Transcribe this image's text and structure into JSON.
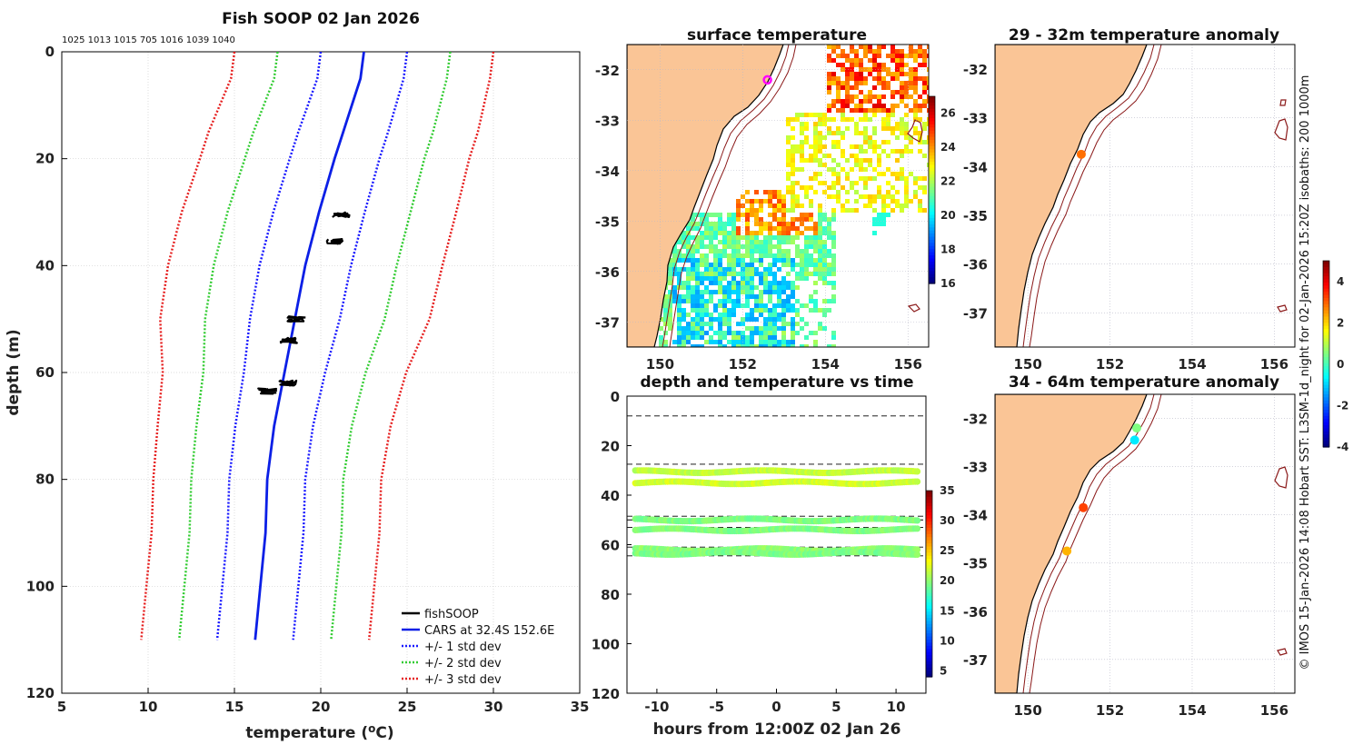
{
  "figure_title": "Fish SOOP 02 Jan 2026",
  "side_caption": "© IMOS 15-Jan-2026 14:08 Hobart SST: L3SM-1d_night for 02-Jan-2026 15:20Z isobaths: 200  1000m",
  "colors": {
    "cars": "#0b1fe6",
    "std1": "#1a1aff",
    "std2": "#33cc33",
    "std3": "#e62020",
    "land": "#fac596",
    "isobath": "#8b1a1a",
    "fish": "#000000"
  },
  "chart_data": [
    {
      "id": "profile",
      "type": "line",
      "title": "Fish SOOP 02 Jan 2026",
      "annotation": "1025 1013 1015 705 1016 1039 1040",
      "xlabel": "temperature (°C)",
      "ylabel": "depth (m)",
      "xlim": [
        5,
        35
      ],
      "ylim": [
        120,
        0
      ],
      "xticks": [
        5,
        10,
        15,
        20,
        25,
        30,
        35
      ],
      "yticks": [
        0,
        20,
        40,
        60,
        80,
        100,
        120
      ],
      "cars_label": "CARS at 32.4S 152.6E",
      "cars": {
        "depth": [
          0,
          5,
          10,
          15,
          20,
          30,
          40,
          50,
          60,
          70,
          80,
          90,
          100,
          110
        ],
        "mean": [
          22.5,
          22.3,
          21.8,
          21.3,
          20.8,
          19.9,
          19.1,
          18.5,
          17.9,
          17.3,
          16.9,
          16.8,
          16.5,
          16.2
        ],
        "std": [
          2.5,
          2.5,
          2.55,
          2.6,
          2.6,
          2.65,
          2.65,
          2.6,
          2.35,
          2.25,
          2.2,
          2.2,
          2.2,
          2.2
        ]
      },
      "series": [
        {
          "name": "fishSOOP",
          "style": "solid",
          "color": "#000000"
        },
        {
          "name": "CARS at 32.4S 152.6E",
          "style": "solid",
          "color": "#0b1fe6"
        },
        {
          "name": "+/- 1 std dev",
          "style": "dotted",
          "color": "#1a1aff"
        },
        {
          "name": "+/- 2 std dev",
          "style": "dotted",
          "color": "#33cc33"
        },
        {
          "name": "+/- 3 std dev",
          "style": "dotted",
          "color": "#e62020"
        }
      ],
      "fish_clusters": [
        {
          "depth": 30.5,
          "temp": 21.2
        },
        {
          "depth": 35.5,
          "temp": 20.8
        },
        {
          "depth": 50.0,
          "temp": 18.6
        },
        {
          "depth": 54.0,
          "temp": 18.1
        },
        {
          "depth": 62.0,
          "temp": 18.1
        },
        {
          "depth": 63.5,
          "temp": 16.9
        }
      ],
      "legend_position": "bottom-right"
    },
    {
      "id": "sst_map",
      "type": "heatmap",
      "title": "surface temperature",
      "xticks": [
        150,
        152,
        154,
        156
      ],
      "yticks": [
        -32,
        -33,
        -34,
        -35,
        -36,
        -37
      ],
      "lon_range": [
        149.2,
        156.5
      ],
      "lat_range": [
        -37.5,
        -31.5
      ],
      "colorbar": {
        "min": 16,
        "max": 27,
        "ticks": [
          16,
          18,
          20,
          22,
          24,
          26
        ]
      },
      "marker": {
        "lon": 152.6,
        "lat": -32.2,
        "shape": "open circle",
        "color": "#ff00ff"
      }
    },
    {
      "id": "anom_29_32",
      "type": "scatter",
      "title": "29 - 32m temperature anomaly",
      "xticks": [
        150,
        152,
        154,
        156
      ],
      "yticks": [
        -32,
        -33,
        -34,
        -35,
        -36,
        -37
      ],
      "points": [
        {
          "lon": 151.3,
          "lat": -33.75,
          "anomaly": 2.9
        }
      ]
    },
    {
      "id": "anom_34_64",
      "type": "scatter",
      "title": "34 - 64m temperature anomaly",
      "xticks": [
        150,
        152,
        154,
        156
      ],
      "yticks": [
        -32,
        -33,
        -34,
        -35,
        -36,
        -37
      ],
      "points": [
        {
          "lon": 152.65,
          "lat": -32.2,
          "anomaly": 0.5
        },
        {
          "lon": 152.6,
          "lat": -32.45,
          "anomaly": -0.8
        },
        {
          "lon": 151.35,
          "lat": -33.85,
          "anomaly": 3.3
        },
        {
          "lon": 150.95,
          "lat": -34.75,
          "anomaly": 2.3
        }
      ],
      "colorbar": {
        "min": -4,
        "max": 5,
        "ticks": [
          -4,
          -2,
          0,
          2,
          4
        ]
      }
    },
    {
      "id": "depth_time",
      "type": "scatter",
      "title": "depth and temperature vs time",
      "xlabel": "hours from 12:00Z 02 Jan 26",
      "xlim": [
        -12.5,
        12.5
      ],
      "ylim": [
        120,
        0
      ],
      "xticks": [
        -10,
        -5,
        0,
        5,
        10
      ],
      "yticks": [
        0,
        20,
        40,
        60,
        80,
        100,
        120
      ],
      "dashed_depths": [
        8,
        27.5,
        48.5,
        50,
        53,
        61,
        64.5
      ],
      "tracks": [
        {
          "depth": 30.5,
          "temp": 21.5
        },
        {
          "depth": 35.0,
          "temp": 22.0
        },
        {
          "depth": 50.0,
          "temp": 19.5
        },
        {
          "depth": 54.0,
          "temp": 19.5
        },
        {
          "depth": 62.0,
          "temp": 19.8
        },
        {
          "depth": 63.5,
          "temp": 19.5
        }
      ],
      "colorbar": {
        "min": 4,
        "max": 35,
        "ticks": [
          5,
          10,
          15,
          20,
          25,
          30,
          35
        ]
      }
    }
  ]
}
